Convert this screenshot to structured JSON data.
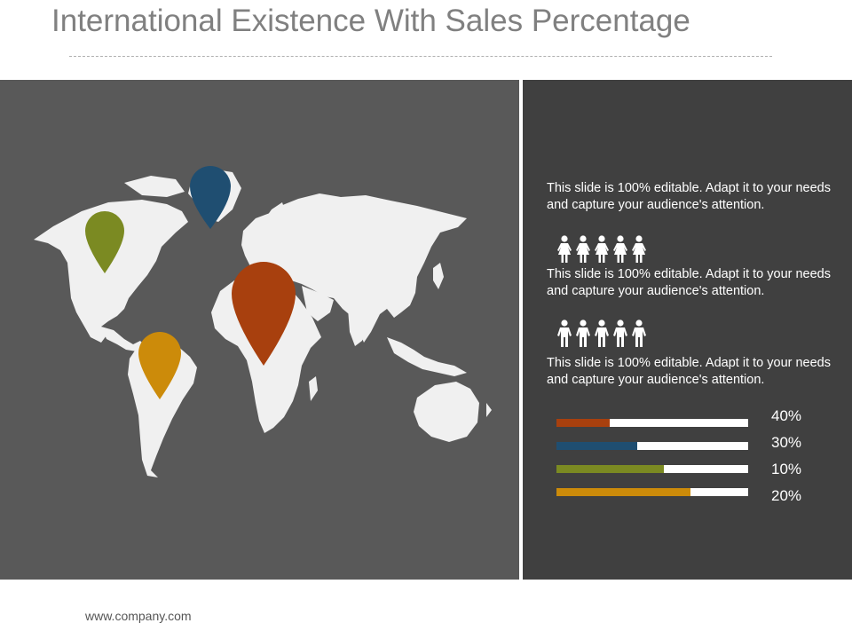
{
  "slide": {
    "title": "International Existence With Sales Percentage",
    "footer": "www.company.com"
  },
  "colors": {
    "map_panel_bg": "#595959",
    "info_panel_bg": "#404040",
    "land": "#f0f0f0",
    "pin_north_america": "#7b8a22",
    "pin_greenland": "#1f4e71",
    "pin_africa": "#a8400e",
    "pin_south_america": "#cc8b0a"
  },
  "map": {
    "pins": [
      {
        "name": "north-america-pin",
        "icon": "map-pin-icon",
        "color": "#7b8a22"
      },
      {
        "name": "greenland-pin",
        "icon": "map-pin-icon",
        "color": "#1f4e71"
      },
      {
        "name": "africa-pin",
        "icon": "map-pin-icon",
        "color": "#a8400e"
      },
      {
        "name": "south-america-pin",
        "icon": "map-pin-icon",
        "color": "#cc8b0a"
      }
    ]
  },
  "info": {
    "paragraphs": [
      "This slide is 100% editable. Adapt it to your needs and capture your audience's attention.",
      "This slide is 100% editable. Adapt it to your needs and capture your audience's attention.",
      "This slide is 100% editable. Adapt it to your needs and capture your audience's attention."
    ],
    "people_groups": [
      {
        "icon": "female-person-icon",
        "count": 5
      },
      {
        "icon": "male-person-icon",
        "count": 5
      }
    ]
  },
  "bars": [
    {
      "label": "40%",
      "fill": 0.28,
      "color": "#a8400e"
    },
    {
      "label": "30%",
      "fill": 0.42,
      "color": "#1f4e71"
    },
    {
      "label": "10%",
      "fill": 0.56,
      "color": "#7b8a22"
    },
    {
      "label": "20%",
      "fill": 0.7,
      "color": "#cc8b0a"
    }
  ]
}
